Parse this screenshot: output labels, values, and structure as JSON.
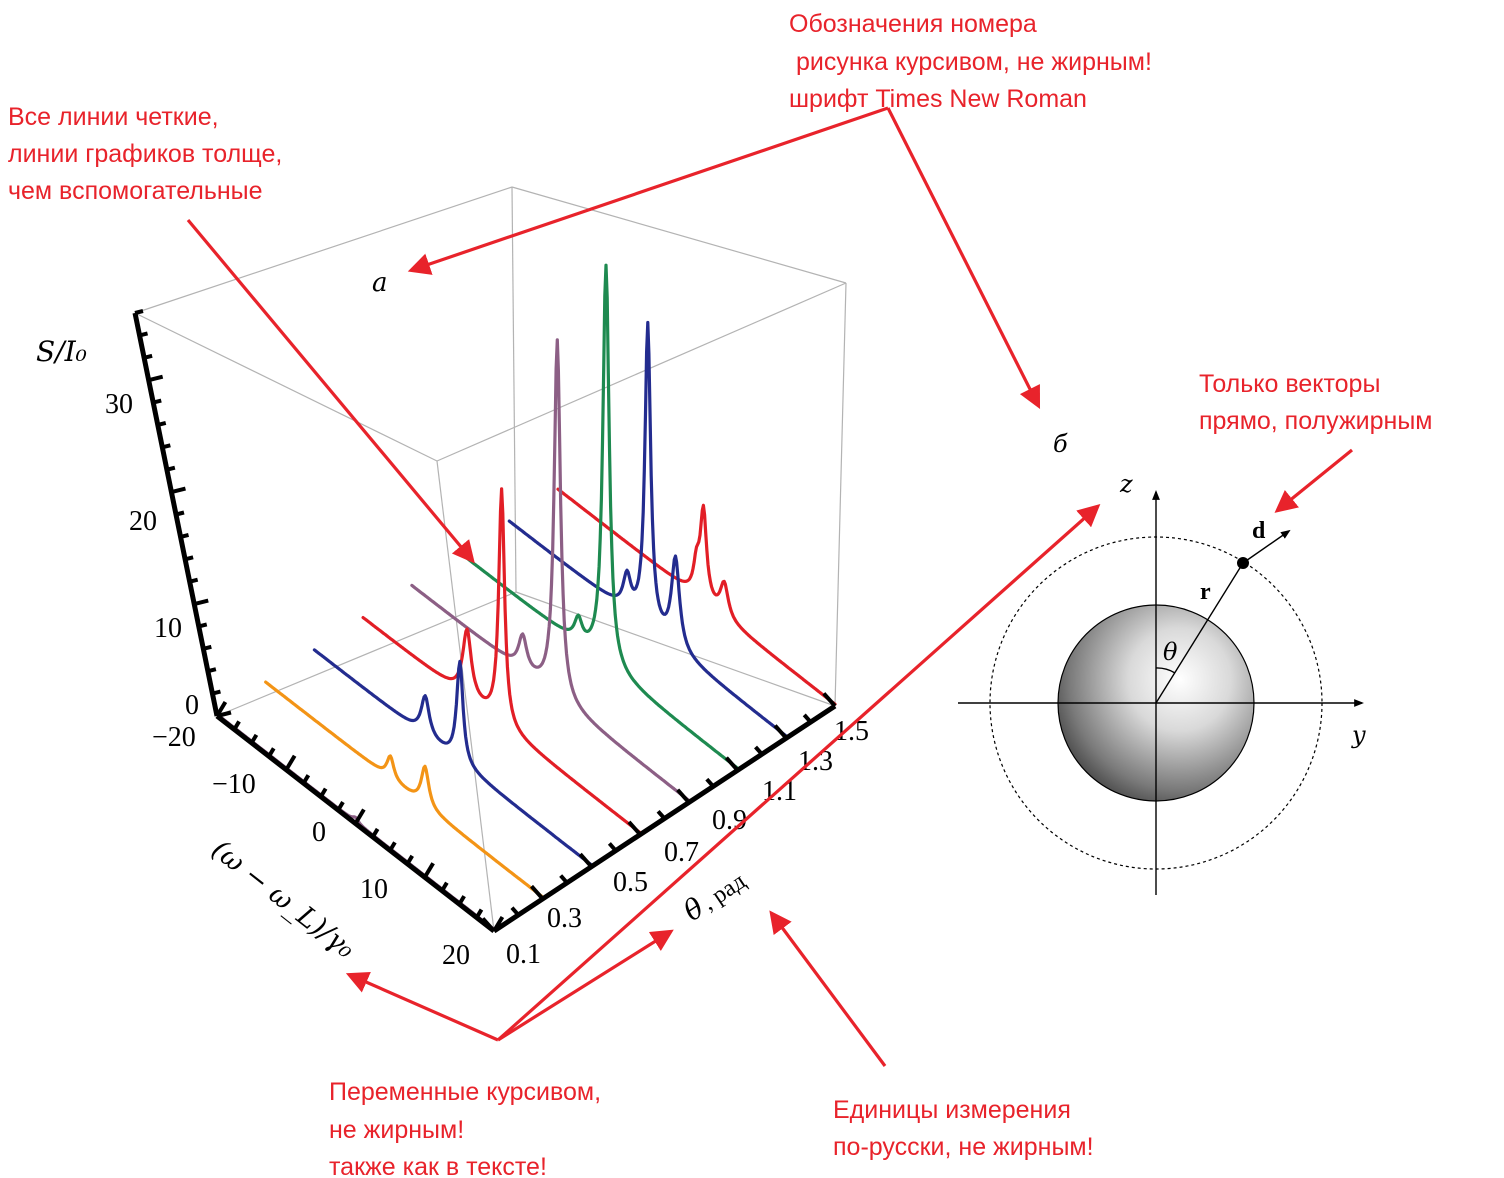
{
  "annotations": {
    "figure_number_font": [
      "Обозначения номера",
      " рисунка курсивом, не жирным!",
      "шрифт Times New Roman"
    ],
    "lines_clear": [
      "Все линии четкие,",
      "линии графиков толще,",
      "чем вспомогательные"
    ],
    "vectors_bold": [
      "Только векторы",
      "прямо, полужирным"
    ],
    "variables_italic": [
      "Переменные курсивом,",
      "не жирным!",
      "также как в тексте!"
    ],
    "units_russian": [
      "Единицы измерения",
      "по-русски, не жирным!"
    ]
  },
  "panels": {
    "a_label": "a",
    "b_label": "б"
  },
  "chart_data": {
    "type": "line",
    "dimensions": "3D",
    "z_label": "S/I₀",
    "x_label": "(ω − ω_L)/γ₀",
    "theta_label": "θ",
    "theta_unit": ", рад",
    "z_ticks": [
      "0",
      "10",
      "20",
      "30"
    ],
    "x_ticks": [
      "−20",
      "−10",
      "0",
      "10",
      "20"
    ],
    "theta_ticks": [
      "0.1",
      "0.3",
      "0.5",
      "0.7",
      "0.9",
      "1.1",
      "1.3",
      "1.5"
    ],
    "zlim": [
      0,
      36
    ],
    "xlim": [
      -20,
      20
    ],
    "theta_lim": [
      0.1,
      1.5
    ],
    "series": [
      {
        "theta": 0.1,
        "color": "#8c5f85",
        "peaks": [
          {
            "x": 0,
            "height": 0.4
          }
        ]
      },
      {
        "theta": 0.3,
        "color": "#f39416",
        "peaks": [
          {
            "x": -2,
            "height": 2.0
          },
          {
            "x": 3,
            "height": 3.5
          }
        ]
      },
      {
        "theta": 0.5,
        "color": "#232c8f",
        "peaks": [
          {
            "x": -4,
            "height": 3.5
          },
          {
            "x": 1,
            "height": 9.0
          }
        ]
      },
      {
        "theta": 0.7,
        "color": "#e21e26",
        "peaks": [
          {
            "x": -5,
            "height": 6.0
          },
          {
            "x": 0,
            "height": 21.0
          }
        ]
      },
      {
        "theta": 0.9,
        "color": "#8c5f85",
        "peaks": [
          {
            "x": -4,
            "height": 3.0
          },
          {
            "x": 1,
            "height": 32.0
          }
        ]
      },
      {
        "theta": 1.1,
        "color": "#1e8a50",
        "peaks": [
          {
            "x": -3,
            "height": 2.0
          },
          {
            "x": 1,
            "height": 36.0
          }
        ]
      },
      {
        "theta": 1.3,
        "color": "#232c8f",
        "peaks": [
          {
            "x": -3,
            "height": 3.0
          },
          {
            "x": 0,
            "height": 27.0
          },
          {
            "x": 4,
            "height": 8.0
          }
        ]
      },
      {
        "theta": 1.5,
        "color": "#e21e26",
        "peaks": [
          {
            "x": 0,
            "height": 2.5
          },
          {
            "x": 1,
            "height": 8.0
          },
          {
            "x": 4,
            "height": 3.0
          }
        ]
      }
    ]
  },
  "sphere_diagram": {
    "axis_z": "z",
    "axis_y": "y",
    "vector_r": "r",
    "vector_d": "d",
    "angle": "θ"
  }
}
